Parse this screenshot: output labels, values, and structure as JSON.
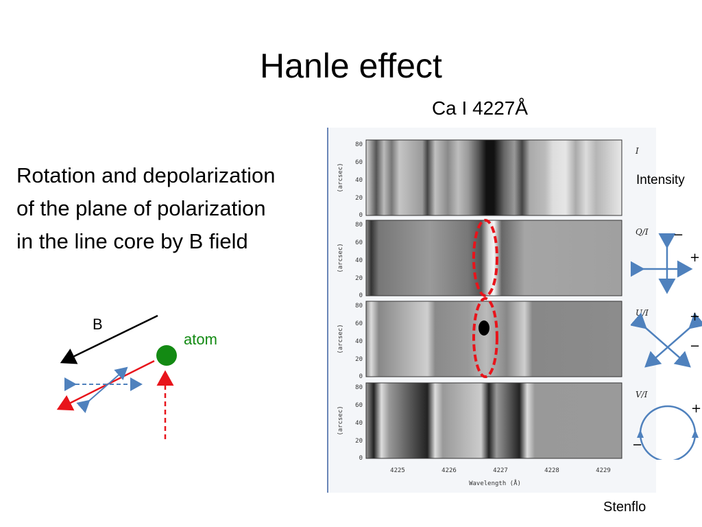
{
  "slide": {
    "title": "Hanle effect",
    "subtitle": "Ca I 4227Å",
    "description_lines": [
      "Rotation and depolarization",
      "of the plane of polarization",
      "in the line core by B field"
    ],
    "credit": "Stenflo"
  },
  "diagram": {
    "b_label": "B",
    "atom_label": "atom",
    "colors": {
      "atom": "#138a13",
      "incoming": "#e8141b",
      "scattered": "#e8141b",
      "polarization": "#4f81bd",
      "field": "#000000"
    }
  },
  "spectra": {
    "wavelength_ticks": [
      "4225",
      "4226",
      "4227",
      "4228",
      "4229"
    ],
    "xlabel": "Wavelength (Å)",
    "ylabel": "(arcsec)",
    "y_ticks": [
      "80",
      "60",
      "40",
      "20",
      "0"
    ],
    "panels": [
      {
        "label": "I",
        "side_label": "Intensity"
      },
      {
        "label": "Q/I",
        "signs": [
          "−",
          "+"
        ]
      },
      {
        "label": "U/I",
        "signs": [
          "+",
          "−"
        ]
      },
      {
        "label": "V/I",
        "signs": [
          "+",
          "−"
        ]
      }
    ],
    "highlight_color": "#e8141b"
  }
}
